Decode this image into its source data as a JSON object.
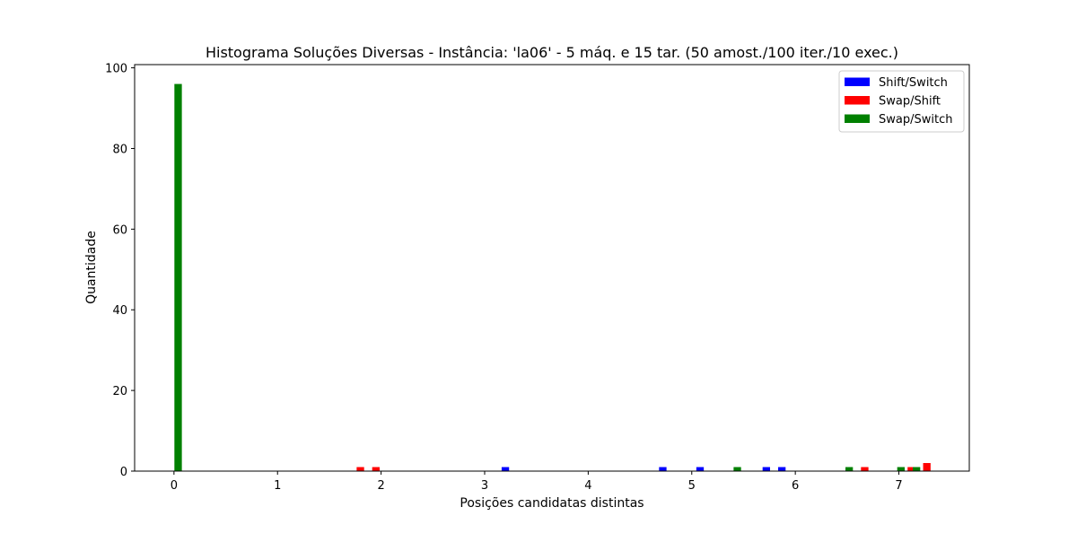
{
  "chart_data": {
    "type": "bar",
    "title": "Histograma Soluções Diversas - Instância: 'la06' - 5 máq. e 15 tar. (50 amost./100 iter./10 exec.)",
    "xlabel": "Posições candidatas distintas",
    "ylabel": "Quantidade",
    "xlim": [
      -0.38,
      7.68
    ],
    "ylim": [
      0,
      100.8
    ],
    "xticks": [
      "0",
      "1",
      "2",
      "3",
      "4",
      "5",
      "6",
      "7"
    ],
    "yticks": [
      "0",
      "20",
      "40",
      "60",
      "80",
      "100"
    ],
    "grid": false,
    "legend_position": "top-right",
    "bar_width": 0.072,
    "series": [
      {
        "name": "Shift/Switch",
        "color": "#0000ff",
        "x": [
          3.2,
          4.72,
          5.08,
          5.72,
          5.87
        ],
        "values": [
          1,
          1,
          1,
          1,
          1
        ]
      },
      {
        "name": "Swap/Shift",
        "color": "#ff0000",
        "x": [
          1.8,
          1.95,
          6.67,
          7.12,
          7.27
        ],
        "values": [
          1,
          1,
          1,
          1,
          2
        ]
      },
      {
        "name": "Swap/Switch",
        "color": "#008000",
        "x": [
          0.04,
          5.44,
          6.52,
          7.02,
          7.17
        ],
        "values": [
          96,
          1,
          1,
          1,
          1
        ]
      }
    ]
  }
}
